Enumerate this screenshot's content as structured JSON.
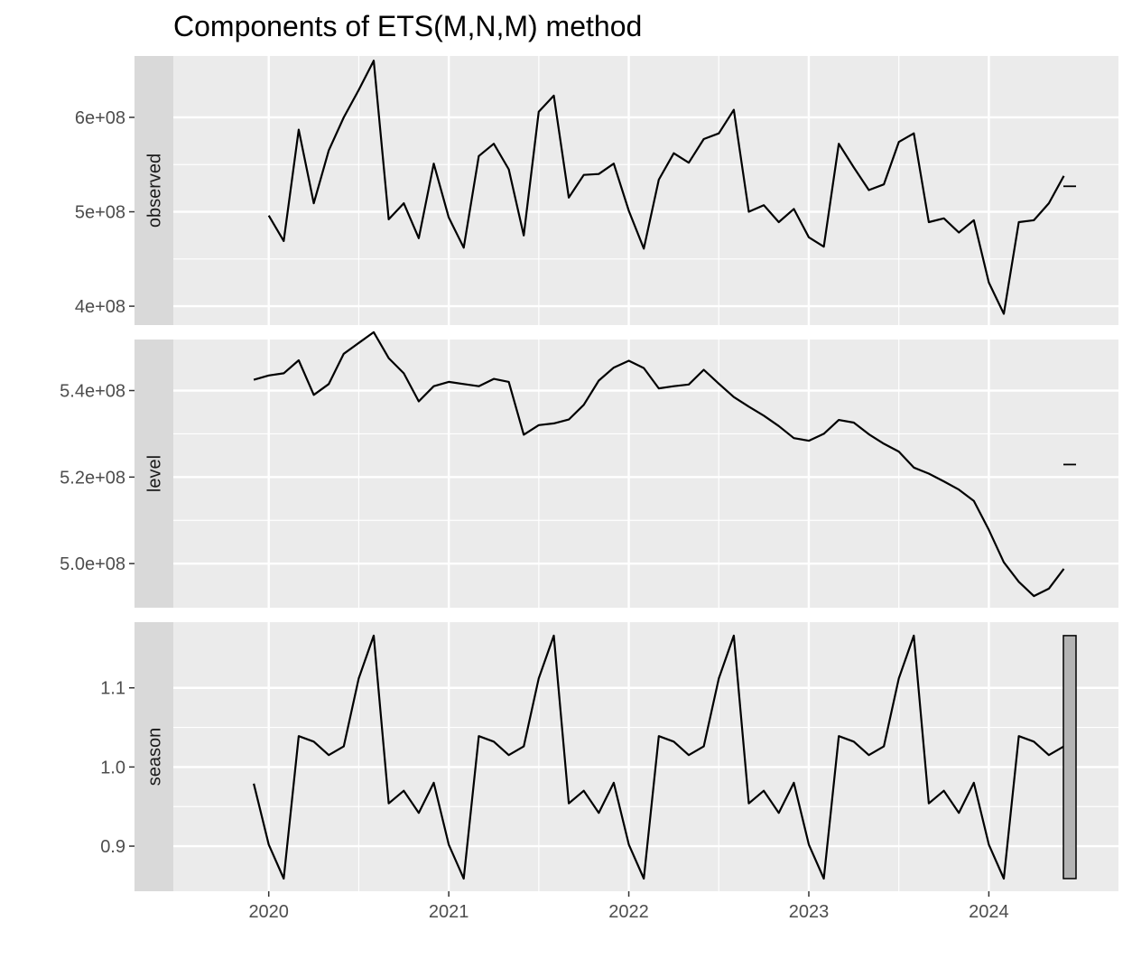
{
  "chart_data": {
    "type": "line",
    "title": "Components of ETS(M,N,M) method",
    "x_start": "2019-12",
    "x_tick_labels": [
      "2020",
      "2021",
      "2022",
      "2023",
      "2024"
    ],
    "x_ticks": [
      2020,
      2021,
      2022,
      2023,
      2024
    ],
    "xlim": [
      2019.47,
      2024.72
    ],
    "grid": true,
    "facets": [
      {
        "name": "observed",
        "ylim": [
          380000000,
          665000000
        ],
        "y_ticks": [
          400000000,
          500000000,
          600000000
        ],
        "y_tick_labels": [
          "4e+08",
          "5e+08",
          "6e+08"
        ],
        "values": [
          null,
          496000000,
          469000000,
          587000000,
          509000000,
          565000000,
          600000000,
          629000000,
          660000000,
          492000000,
          509000000,
          472000000,
          551000000,
          494000000,
          462000000,
          559000000,
          572000000,
          545000000,
          475000000,
          606000000,
          623000000,
          515000000,
          539000000,
          540000000,
          551000000,
          501000000,
          461000000,
          534000000,
          562000000,
          552000000,
          577000000,
          583000000,
          608000000,
          500000000,
          507000000,
          489000000,
          503000000,
          473000000,
          463000000,
          572000000,
          547000000,
          523000000,
          529000000,
          574000000,
          583000000,
          489000000,
          493000000,
          478000000,
          491000000,
          425000000,
          392000000,
          489000000,
          491000000,
          509000000,
          538000000
        ],
        "bar": {
          "type": "tick",
          "value": 527000000
        }
      },
      {
        "name": "level",
        "ylim": [
          489800000,
          551800000
        ],
        "y_ticks": [
          500000000,
          520000000,
          540000000
        ],
        "y_tick_labels": [
          "5.0e+08",
          "5.2e+08",
          "5.4e+08"
        ],
        "values": [
          542500000,
          543500000,
          544000000,
          547000000,
          539000000,
          541500000,
          548500000,
          551000000,
          553500000,
          547500000,
          544000000,
          537500000,
          541000000,
          542000000,
          541500000,
          541000000,
          542700000,
          542000000,
          529800000,
          532000000,
          532400000,
          533300000,
          536700000,
          542300000,
          545300000,
          546900000,
          545200000,
          540500000,
          541000000,
          541400000,
          544800000,
          541600000,
          538500000,
          536300000,
          534200000,
          531800000,
          529000000,
          528400000,
          530000000,
          533200000,
          532600000,
          529900000,
          527700000,
          525900000,
          522200000,
          520800000,
          519000000,
          517100000,
          514500000,
          507800000,
          500300000,
          495800000,
          492500000,
          494200000,
          498800000
        ],
        "bar": {
          "type": "tick",
          "value": 522900000
        }
      },
      {
        "name": "season",
        "ylim": [
          0.843,
          1.183
        ],
        "y_ticks": [
          0.9,
          1.0,
          1.1
        ],
        "y_tick_labels": [
          "0.9",
          "1.0",
          "1.1"
        ],
        "values": [
          0.979,
          0.902,
          0.859,
          1.039,
          1.032,
          1.015,
          1.026,
          1.112,
          1.166,
          0.954,
          0.97,
          0.942,
          0.98,
          0.902,
          0.859,
          1.039,
          1.032,
          1.015,
          1.026,
          1.112,
          1.166,
          0.954,
          0.97,
          0.942,
          0.98,
          0.902,
          0.859,
          1.039,
          1.032,
          1.015,
          1.026,
          1.112,
          1.166,
          0.954,
          0.97,
          0.942,
          0.98,
          0.902,
          0.859,
          1.039,
          1.032,
          1.015,
          1.026,
          1.112,
          1.166,
          0.954,
          0.97,
          0.942,
          0.98,
          0.902,
          0.859,
          1.039,
          1.032,
          1.015,
          1.026
        ],
        "bar": {
          "type": "range",
          "value": [
            0.859,
            1.166
          ]
        }
      }
    ],
    "colors": {
      "panel_bg": "#ebebeb",
      "strip_bg": "#d9d9d9",
      "grid": "#ffffff",
      "line": "#000000",
      "range_bar_fill": "#b3b3b3",
      "tick_text": "#4d4d4d",
      "strip_text": "#1a1a1a"
    }
  }
}
